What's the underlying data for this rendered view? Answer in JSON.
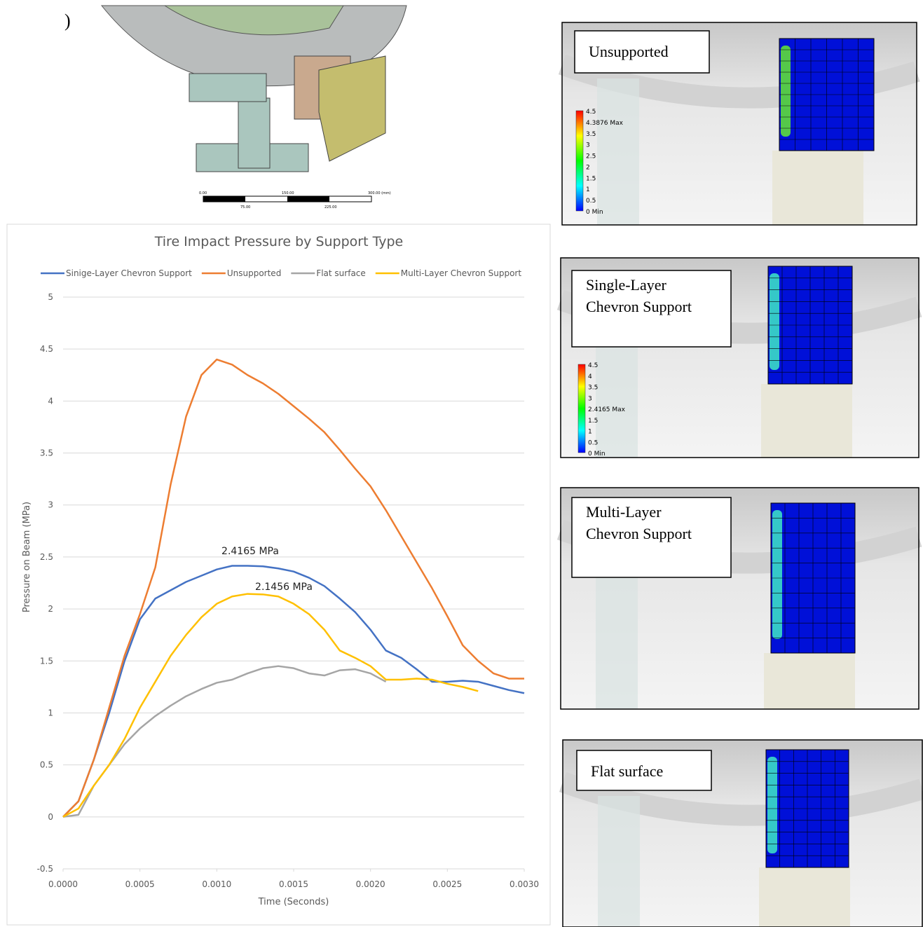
{
  "figure": {
    "mesh_label": ")",
    "scale_bar": [
      "0.00",
      "150.00",
      "300.00 (mm)",
      "75.00",
      "225.00"
    ]
  },
  "chart_data": {
    "type": "line",
    "title": "Tire Impact Pressure by Support Type",
    "x_label": "Time (Seconds)",
    "y_label": "Pressure on Beam (MPa)",
    "x": [
      0,
      0.0001,
      0.0002,
      0.0003,
      0.0004,
      0.0005,
      0.0006,
      0.0007,
      0.0008,
      0.0009,
      0.001,
      0.0011,
      0.0012,
      0.0013,
      0.0014,
      0.0015,
      0.0016,
      0.0017,
      0.0018,
      0.0019,
      0.002,
      0.0021,
      0.0022,
      0.0023,
      0.0024,
      0.0025,
      0.0026,
      0.0027,
      0.0028,
      0.0029,
      0.003
    ],
    "series": [
      {
        "name": "Sinige-Layer Chevron Support",
        "color": "#4472c4",
        "values": [
          0,
          0.15,
          0.55,
          1.0,
          1.5,
          1.9,
          2.1,
          2.18,
          2.26,
          2.32,
          2.38,
          2.415,
          2.415,
          2.41,
          2.39,
          2.36,
          2.3,
          2.22,
          2.1,
          1.97,
          1.8,
          1.6,
          1.53,
          1.42,
          1.3,
          1.3,
          1.31,
          1.3,
          1.26,
          1.22,
          1.19
        ]
      },
      {
        "name": "Unsupported",
        "color": "#ed7d31",
        "values": [
          0,
          0.15,
          0.55,
          1.05,
          1.55,
          1.95,
          2.4,
          3.2,
          3.85,
          4.25,
          4.4,
          4.35,
          4.25,
          4.17,
          4.07,
          3.95,
          3.83,
          3.7,
          3.53,
          3.35,
          3.18,
          2.95,
          2.7,
          2.45,
          2.2,
          1.93,
          1.65,
          1.5,
          1.38,
          1.33,
          1.33
        ]
      },
      {
        "name": "Flat surface",
        "color": "#a5a5a5",
        "values": [
          0,
          0.02,
          0.3,
          0.5,
          0.7,
          0.85,
          0.97,
          1.07,
          1.16,
          1.23,
          1.29,
          1.32,
          1.38,
          1.43,
          1.45,
          1.43,
          1.38,
          1.36,
          1.41,
          1.42,
          1.38,
          1.3,
          null,
          null,
          null,
          null,
          null,
          null,
          null,
          null,
          null
        ]
      },
      {
        "name": "Multi-Layer Chevron Support",
        "color": "#ffc000",
        "values": [
          0,
          0.08,
          0.3,
          0.5,
          0.75,
          1.05,
          1.3,
          1.55,
          1.75,
          1.92,
          2.05,
          2.12,
          2.145,
          2.14,
          2.12,
          2.05,
          1.95,
          1.8,
          1.6,
          1.53,
          1.45,
          1.32,
          1.32,
          1.33,
          1.32,
          1.28,
          1.25,
          1.21,
          null,
          null,
          null
        ]
      }
    ],
    "annotations": [
      "2.4165 MPa",
      "2.1456 MPa"
    ],
    "xlim": [
      0,
      0.003
    ],
    "xticks": [
      {
        "value": 0,
        "label": "0.0000"
      },
      {
        "value": 0.0005,
        "label": "0.0005"
      },
      {
        "value": 0.001,
        "label": "0.0010"
      },
      {
        "value": 0.0015,
        "label": "0.0015"
      },
      {
        "value": 0.002,
        "label": "0.0020"
      },
      {
        "value": 0.0025,
        "label": "0.0025"
      },
      {
        "value": 0.003,
        "label": "0.0030"
      }
    ],
    "ylim": [
      -0.5,
      5
    ],
    "yticks": [
      -0.5,
      0,
      0.5,
      1,
      1.5,
      2,
      2.5,
      3,
      3.5,
      4,
      4.5,
      5
    ],
    "grid": true,
    "legend": "top"
  },
  "panels": [
    {
      "label": [
        "Unsupported"
      ],
      "colorbar": [
        "4.5",
        "4.3876 Max",
        "3.5",
        "3",
        "2.5",
        "2",
        "1.5",
        "1",
        "0.5",
        "0 Min"
      ]
    },
    {
      "label": [
        "Single-Layer",
        "Chevron Support"
      ],
      "colorbar": [
        "4.5",
        "4",
        "3.5",
        "3",
        "2.4165 Max",
        "1.5",
        "1",
        "0.5",
        "0 Min"
      ]
    },
    {
      "label": [
        "Multi-Layer",
        "Chevron Support"
      ]
    },
    {
      "label": [
        "Flat surface"
      ]
    }
  ]
}
